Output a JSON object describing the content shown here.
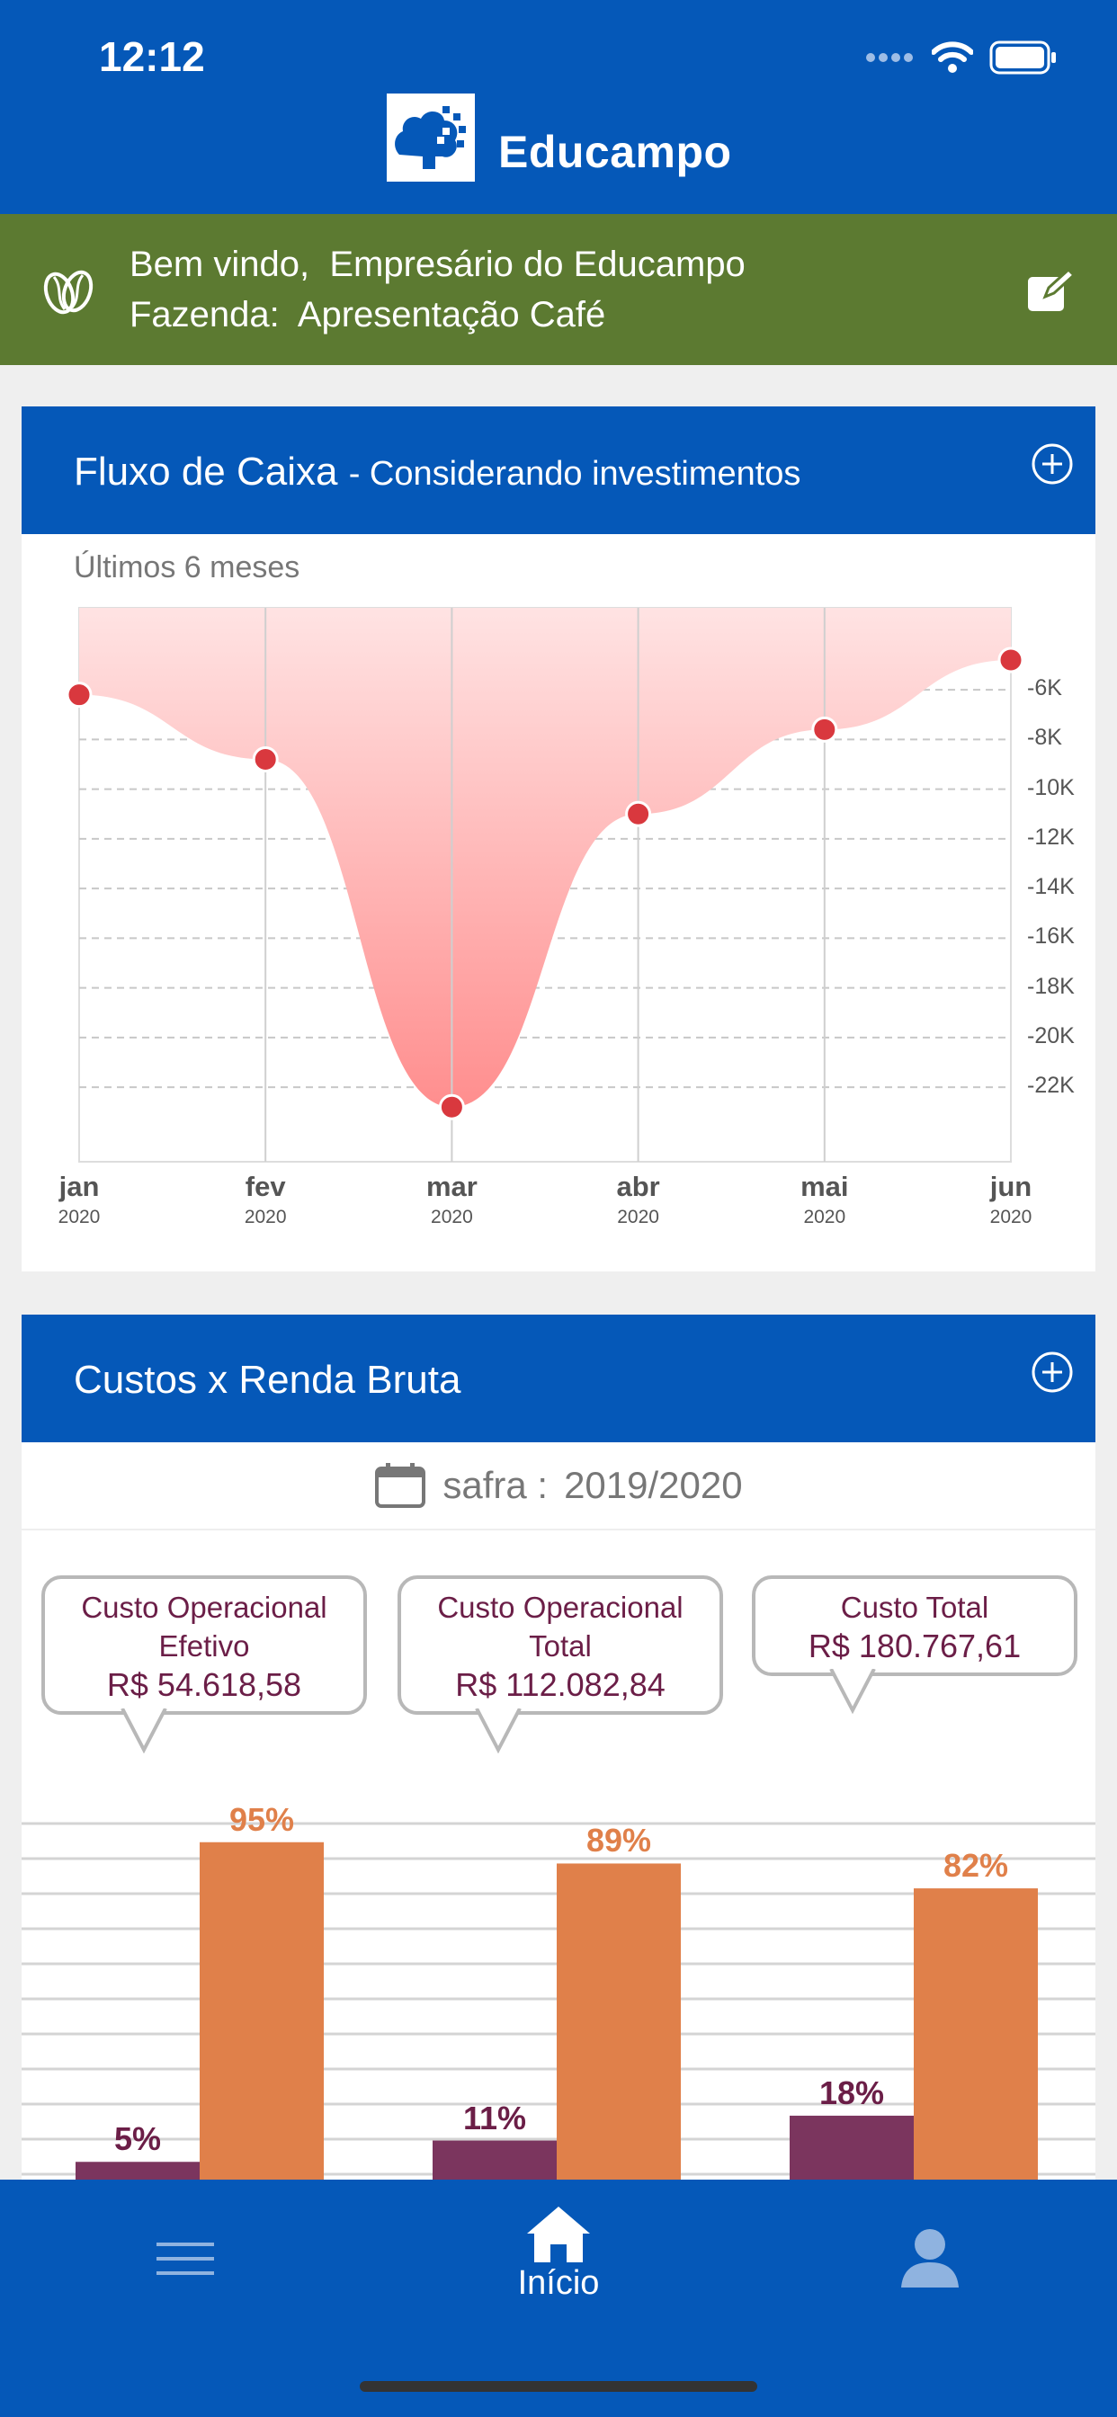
{
  "status_bar": {
    "time": "12:12"
  },
  "header": {
    "brand": "Educampo"
  },
  "welcome": {
    "greeting_label": "Bem vindo,",
    "user_name": "Empresário do Educampo",
    "farm_label": "Fazenda:",
    "farm_name": "Apresentação Café"
  },
  "cashflow_card": {
    "title": "Fluxo de Caixa",
    "subtitle": "- Considerando investimentos",
    "period_label": "Últimos 6 meses",
    "chart_data": {
      "type": "area",
      "x": [
        "jan 2020",
        "fev 2020",
        "mar 2020",
        "abr 2020",
        "mai 2020",
        "jun 2020"
      ],
      "x_months": [
        "jan",
        "fev",
        "mar",
        "abr",
        "mai",
        "jun"
      ],
      "x_years": [
        "2020",
        "2020",
        "2020",
        "2020",
        "2020",
        "2020"
      ],
      "values": [
        -6200,
        -8800,
        -22800,
        -11000,
        -7600,
        -4800
      ],
      "yticks": [
        "-6K",
        "-8K",
        "-10K",
        "-12K",
        "-14K",
        "-16K",
        "-18K",
        "-20K",
        "-22K"
      ],
      "ytick_values": [
        -6000,
        -8000,
        -10000,
        -12000,
        -14000,
        -16000,
        -18000,
        -20000,
        -22000
      ],
      "ylim": [
        -25000,
        -2700
      ],
      "grid": true,
      "colors": {
        "fill_top": "#ff8e8e",
        "fill_bottom": "#ffe3e3",
        "point": "#d9383e"
      }
    }
  },
  "cost_card": {
    "title": "Custos x Renda Bruta",
    "season_label": "safra :",
    "season_value": "2019/2020",
    "costs": [
      {
        "label_line1": "Custo Operacional",
        "label_line2": "Efetivo",
        "value": "R$ 54.618,58"
      },
      {
        "label_line1": "Custo Operacional",
        "label_line2": "Total",
        "value": "R$ 112.082,84"
      },
      {
        "label_line1": "Custo Total",
        "label_line2": "",
        "value": "R$ 180.767,61"
      }
    ],
    "chart_data": {
      "type": "bar",
      "categories": [
        "Custo Operacional Efetivo",
        "Custo Operacional Total",
        "Custo Total"
      ],
      "series": [
        {
          "values": [
            5,
            11,
            18
          ],
          "labels": [
            "5%",
            "11%",
            "18%"
          ],
          "color": "#7b355e"
        },
        {
          "values": [
            95,
            89,
            82
          ],
          "labels": [
            "95%",
            "89%",
            "82%"
          ],
          "color": "#e0804a"
        }
      ]
    }
  },
  "tabbar": {
    "home_label": "Início"
  },
  "colors": {
    "primary": "#0558b8",
    "welcome_band": "#5c7a31",
    "accent_wine": "#6b1e47",
    "accent_orange": "#e0804a"
  }
}
